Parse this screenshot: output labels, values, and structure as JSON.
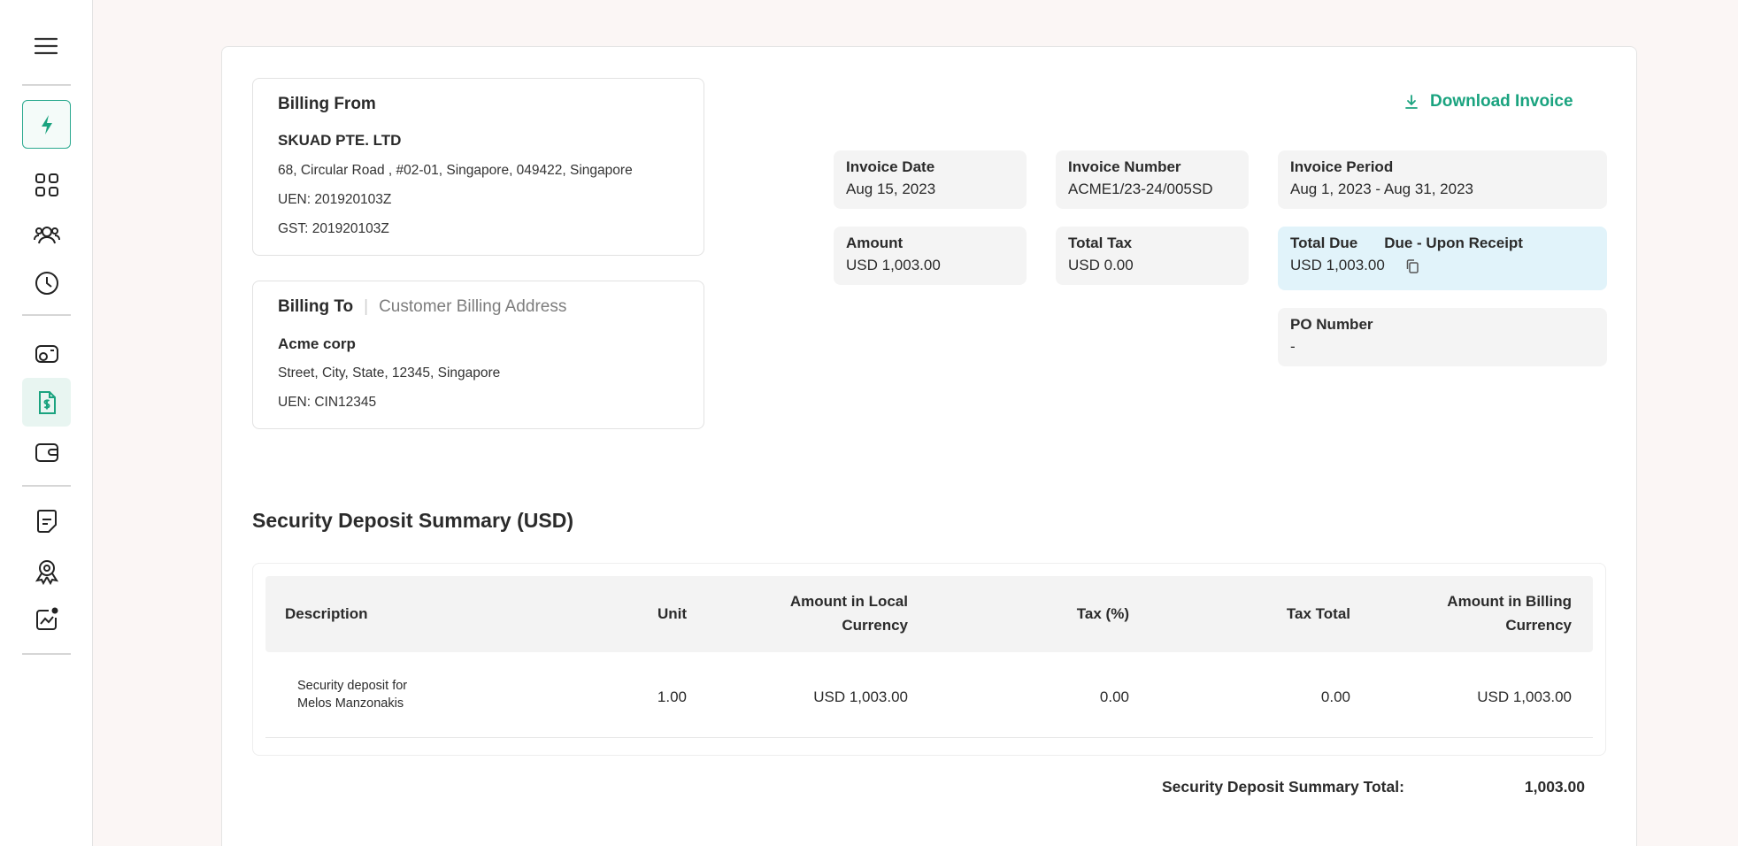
{
  "sidebar": {
    "icons": [
      "menu-icon",
      "lightning-icon",
      "grid-icon",
      "team-icon",
      "clock-icon",
      "coins-icon",
      "invoice-icon",
      "wallet-icon",
      "document-icon",
      "badge-icon",
      "analytics-icon"
    ]
  },
  "billing_from": {
    "title": "Billing From",
    "company": "SKUAD PTE. LTD",
    "address": "68, Circular Road , #02-01, Singapore, 049422, Singapore",
    "uen": "UEN: 201920103Z",
    "gst": "GST: 201920103Z"
  },
  "billing_to": {
    "title": "Billing To",
    "subtitle": "Customer Billing Address",
    "company": "Acme corp",
    "address": "Street, City, State, 12345, Singapore",
    "uen": "UEN: CIN12345"
  },
  "download": {
    "label": "Download Invoice"
  },
  "invoice": {
    "date_label": "Invoice Date",
    "date": "Aug 15, 2023",
    "number_label": "Invoice Number",
    "number": "ACME1/23-24/005SD",
    "period_label": "Invoice Period",
    "period": "Aug 1, 2023 - Aug 31, 2023",
    "amount_label": "Amount",
    "amount": "USD 1,003.00",
    "tax_label": "Total Tax",
    "tax": "USD 0.00",
    "due_label": "Total Due",
    "due_terms": "Due - Upon Receipt",
    "due": "USD 1,003.00",
    "po_label": "PO Number",
    "po": "-"
  },
  "summary": {
    "title": "Security Deposit Summary (USD)",
    "columns": [
      "Description",
      "Unit",
      "Amount in Local Currency",
      "Tax (%)",
      "Tax Total",
      "Amount in Billing Currency"
    ],
    "rows": [
      {
        "description": "Security deposit for Melos Manzonakis",
        "unit": "1.00",
        "amount_local": "USD 1,003.00",
        "tax_pct": "0.00",
        "tax_total": "0.00",
        "amount_billing": "USD 1,003.00"
      }
    ],
    "total_label": "Security Deposit Summary Total:",
    "total_value": "1,003.00"
  },
  "colors": {
    "accent": "#1aa37f",
    "due_bg": "#e1f3fa",
    "meta_bg": "#f4f4f4"
  }
}
